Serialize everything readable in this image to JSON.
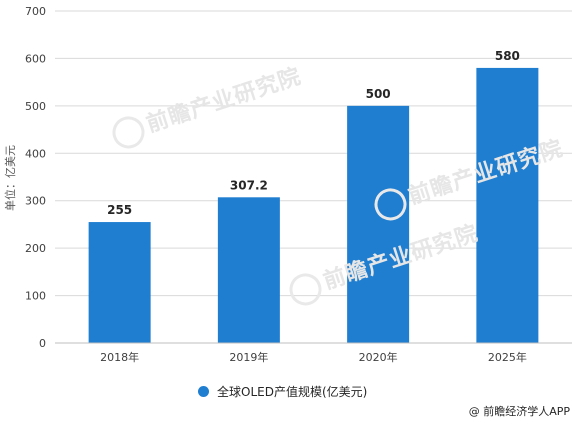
{
  "chart_data": {
    "type": "bar",
    "categories": [
      "2018年",
      "2019年",
      "2020年",
      "2025年"
    ],
    "series": [
      {
        "name": "全球OLED产值规模(亿美元)",
        "values": [
          255,
          307.2,
          500,
          580
        ]
      }
    ],
    "data_labels": [
      "255",
      "307.2",
      "500",
      "580"
    ],
    "ylabel": "单位：亿美元",
    "ylim": [
      0,
      700
    ],
    "yticks": [
      0,
      100,
      200,
      300,
      400,
      500,
      600,
      700
    ],
    "grid": true,
    "legend_position": "bottom",
    "bar_color": "#1f7ed0"
  },
  "legend": {
    "label": "全球OLED产值规模(亿美元)"
  },
  "credit": "@ 前瞻经济学人APP",
  "watermarks": [
    "前瞻产业研究院",
    "前瞻产业研究院",
    "前瞻产业研究院"
  ]
}
